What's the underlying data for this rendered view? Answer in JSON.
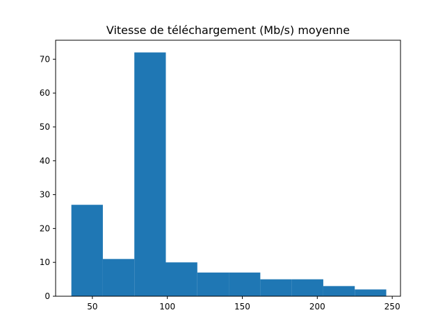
{
  "chart_data": {
    "type": "bar",
    "title": "Vitesse de téléchargement (Mb/s) moyenne",
    "xlabel": "",
    "ylabel": "",
    "xlim": [
      25.5,
      255.5
    ],
    "ylim": [
      0,
      75.6
    ],
    "xticks": [
      50,
      100,
      150,
      200,
      250
    ],
    "yticks": [
      0,
      10,
      20,
      30,
      40,
      50,
      60,
      70
    ],
    "bins": [
      {
        "start": 36,
        "end": 57,
        "count": 27
      },
      {
        "start": 57,
        "end": 78,
        "count": 11
      },
      {
        "start": 78,
        "end": 99,
        "count": 72
      },
      {
        "start": 99,
        "end": 120,
        "count": 10
      },
      {
        "start": 120,
        "end": 141,
        "count": 7
      },
      {
        "start": 141,
        "end": 162,
        "count": 7
      },
      {
        "start": 162,
        "end": 183,
        "count": 5
      },
      {
        "start": 183,
        "end": 204,
        "count": 5
      },
      {
        "start": 204,
        "end": 225,
        "count": 3
      },
      {
        "start": 225,
        "end": 246,
        "count": 2
      }
    ],
    "bar_color": "#1f77b4",
    "grid": false,
    "legend": "none"
  }
}
